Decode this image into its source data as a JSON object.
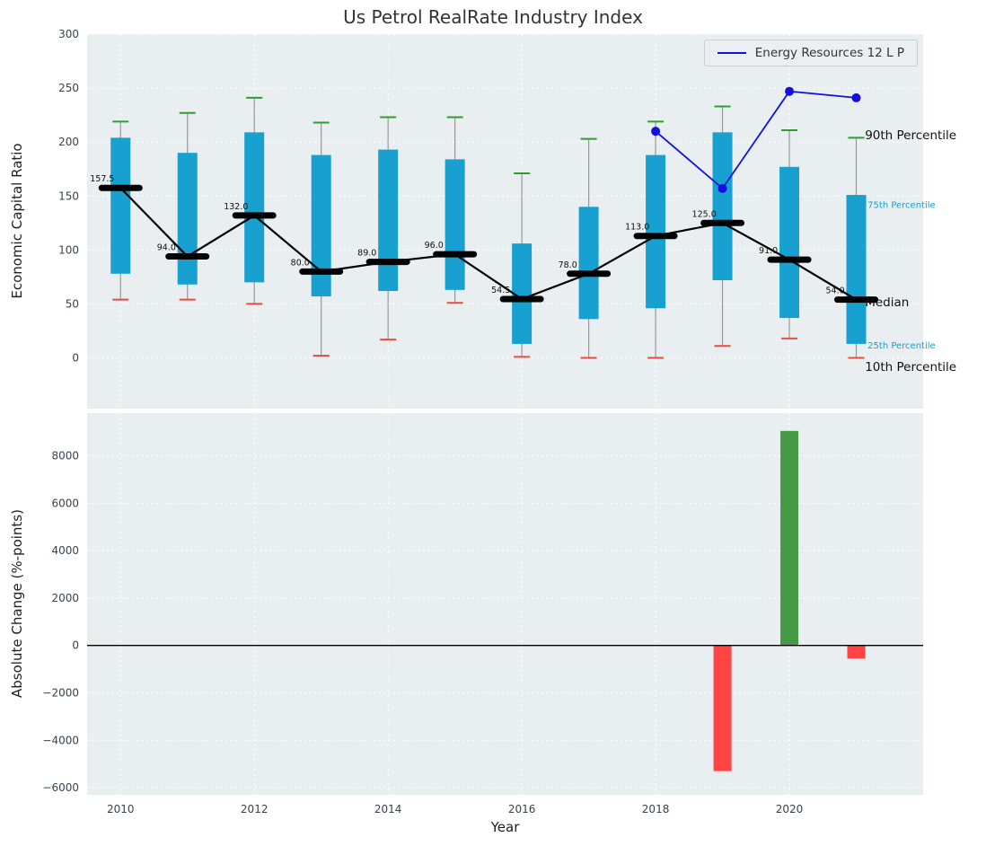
{
  "figure": {
    "title": "Us Petrol RealRate Industry Index",
    "top_ylabel": "Economic Capital Ratio",
    "bottom_ylabel": "Absolute Change (%-points)",
    "xlabel": "Year",
    "legend_label": "Energy Resources 12 L P"
  },
  "colors": {
    "plot_bg": "#e9eef1",
    "grid": "#ffffff",
    "box_fill": "#18a1d0",
    "median": "#000000",
    "whisker": "#999999",
    "cap_top": "#2ca02c",
    "cap_bottom": "#e74c3c",
    "overlay_line": "#1010e0",
    "bar_positive": "#459a45",
    "bar_negative": "#ff4444",
    "tick_label": "#39424d",
    "annotation_small": "#17a0c8"
  },
  "chart_data": [
    {
      "type": "boxplot",
      "title": "Us Petrol RealRate Industry Index",
      "ylabel": "Economic Capital Ratio",
      "ylim": [
        -47,
        300
      ],
      "yticks": [
        0,
        50,
        100,
        150,
        200,
        250,
        300
      ],
      "xlim": [
        2009.5,
        2022
      ],
      "grid": true,
      "legend_position": "upper right",
      "series_percentiles": [
        {
          "year": 2010,
          "p10": 54,
          "p25": 78,
          "median": 157.5,
          "p75": 204,
          "p90": 219
        },
        {
          "year": 2011,
          "p10": 54,
          "p25": 68,
          "median": 94.0,
          "p75": 190,
          "p90": 227
        },
        {
          "year": 2012,
          "p10": 50,
          "p25": 70,
          "median": 132.0,
          "p75": 209,
          "p90": 241
        },
        {
          "year": 2013,
          "p10": 2,
          "p25": 57,
          "median": 80.0,
          "p75": 188,
          "p90": 218
        },
        {
          "year": 2014,
          "p10": 17,
          "p25": 62,
          "median": 89.0,
          "p75": 193,
          "p90": 223
        },
        {
          "year": 2015,
          "p10": 51,
          "p25": 63,
          "median": 96.0,
          "p75": 184,
          "p90": 223
        },
        {
          "year": 2016,
          "p10": 1,
          "p25": 13,
          "median": 54.5,
          "p75": 106,
          "p90": 171
        },
        {
          "year": 2017,
          "p10": 0,
          "p25": 36,
          "median": 78.0,
          "p75": 140,
          "p90": 203
        },
        {
          "year": 2018,
          "p10": 0,
          "p25": 46,
          "median": 113.0,
          "p75": 188,
          "p90": 219
        },
        {
          "year": 2019,
          "p10": 11,
          "p25": 72,
          "median": 125.0,
          "p75": 209,
          "p90": 233
        },
        {
          "year": 2020,
          "p10": 18,
          "p25": 37,
          "median": 91.0,
          "p75": 177,
          "p90": 211
        },
        {
          "year": 2021,
          "p10": 0,
          "p25": 13,
          "median": 54.0,
          "p75": 151,
          "p90": 204
        }
      ],
      "median_labels": [
        "157.5",
        "94.0",
        "132.0",
        "80.0",
        "89.0",
        "96.0",
        "54.5",
        "78.0",
        "113.0",
        "125.0",
        "91.0",
        "54.0"
      ],
      "overlay_series": {
        "name": "Energy Resources 12 L P",
        "points": [
          {
            "year": 2018,
            "value": 210
          },
          {
            "year": 2019,
            "value": 157
          },
          {
            "year": 2020,
            "value": 247
          },
          {
            "year": 2021,
            "value": 241
          }
        ]
      },
      "annotations": [
        {
          "text": "90th Percentile",
          "x": 2021.13,
          "y": 207,
          "color": "#111111",
          "size": 13.5
        },
        {
          "text": "75th Percentile",
          "x": 2021.17,
          "y": 143,
          "color": "#17a0c8",
          "size": 10
        },
        {
          "text": "Median",
          "x": 2021.13,
          "y": 52,
          "color": "#111111",
          "size": 13.5
        },
        {
          "text": "25th Percentile",
          "x": 2021.17,
          "y": 13,
          "color": "#17a0c8",
          "size": 10
        },
        {
          "text": "10th Percentile",
          "x": 2021.13,
          "y": -8,
          "color": "#111111",
          "size": 13.5
        }
      ]
    },
    {
      "type": "bar",
      "ylabel": "Absolute Change (%-points)",
      "xlabel": "Year",
      "ylim": [
        -6300,
        9800
      ],
      "yticks": [
        -6000,
        -4000,
        -2000,
        0,
        2000,
        4000,
        6000,
        8000
      ],
      "xticks": [
        2010,
        2012,
        2014,
        2016,
        2018,
        2020
      ],
      "grid": true,
      "zero_line": true,
      "bars": [
        {
          "year": 2019,
          "value": -5300
        },
        {
          "year": 2020,
          "value": 9050
        },
        {
          "year": 2021,
          "value": -550
        }
      ]
    }
  ]
}
